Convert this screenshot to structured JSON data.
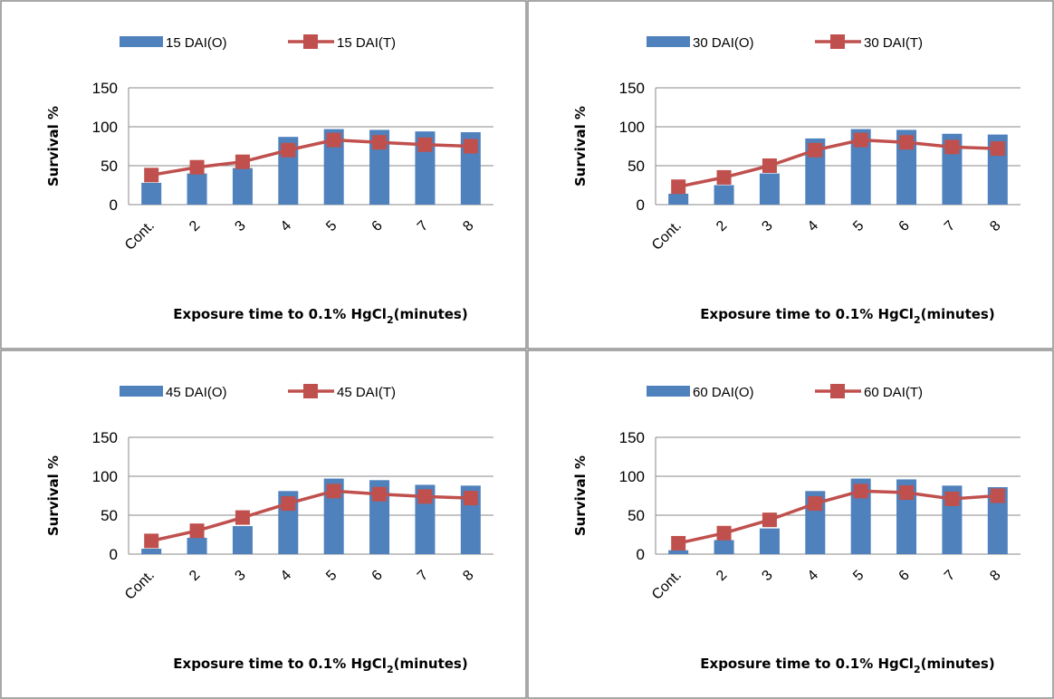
{
  "chart_data": [
    {
      "type": "bar",
      "categories": [
        "Cont.",
        "2",
        "3",
        "4",
        "5",
        "6",
        "7",
        "8"
      ],
      "series": [
        {
          "name": "15 DAI(O)",
          "kind": "bar",
          "values": [
            28,
            40,
            47,
            87,
            97,
            96,
            94,
            93
          ]
        },
        {
          "name": "15 DAI(T)",
          "kind": "line",
          "values": [
            38,
            48,
            55,
            70,
            83,
            80,
            77,
            75
          ]
        }
      ],
      "ylabel": "Survival %",
      "xlabel_pre": "Exposure time to 0.1% HgCl",
      "xlabel_sub": "2",
      "xlabel_post": "(minutes)",
      "ylim": [
        0,
        150
      ],
      "yticks": [
        "0",
        "50",
        "100",
        "150"
      ],
      "grid": true,
      "legend": "top"
    },
    {
      "type": "bar",
      "categories": [
        "Cont.",
        "2",
        "3",
        "4",
        "5",
        "6",
        "7",
        "8"
      ],
      "series": [
        {
          "name": "30 DAI(O)",
          "kind": "bar",
          "values": [
            14,
            25,
            40,
            85,
            97,
            96,
            91,
            90
          ]
        },
        {
          "name": "30 DAI(T)",
          "kind": "line",
          "values": [
            23,
            35,
            50,
            70,
            83,
            80,
            74,
            72
          ]
        }
      ],
      "ylabel": "Survival %",
      "xlabel_pre": "Exposure time to 0.1% HgCl",
      "xlabel_sub": "2",
      "xlabel_post": "(minutes)",
      "ylim": [
        0,
        150
      ],
      "yticks": [
        "0",
        "50",
        "100",
        "150"
      ],
      "grid": true,
      "legend": "top"
    },
    {
      "type": "bar",
      "categories": [
        "Cont.",
        "2",
        "3",
        "4",
        "5",
        "6",
        "7",
        "8"
      ],
      "series": [
        {
          "name": "45 DAI(O)",
          "kind": "bar",
          "values": [
            7,
            21,
            36,
            81,
            97,
            95,
            89,
            88
          ]
        },
        {
          "name": "45 DAI(T)",
          "kind": "line",
          "values": [
            17,
            30,
            47,
            65,
            81,
            77,
            74,
            72
          ]
        }
      ],
      "ylabel": "Survival %",
      "xlabel_pre": "Exposure time to 0.1% HgCl",
      "xlabel_sub": "2",
      "xlabel_post": "(minutes)",
      "ylim": [
        0,
        150
      ],
      "yticks": [
        "0",
        "50",
        "100",
        "150"
      ],
      "grid": true,
      "legend": "top"
    },
    {
      "type": "bar",
      "categories": [
        "Cont.",
        "2",
        "3",
        "4",
        "5",
        "6",
        "7",
        "8"
      ],
      "series": [
        {
          "name": "60 DAI(O)",
          "kind": "bar",
          "values": [
            5,
            18,
            33,
            81,
            97,
            96,
            88,
            86
          ]
        },
        {
          "name": "60 DAI(T)",
          "kind": "line",
          "values": [
            14,
            27,
            44,
            65,
            81,
            79,
            71,
            75
          ]
        }
      ],
      "ylabel": "Survival %",
      "xlabel_pre": "Exposure time to 0.1% HgCl",
      "xlabel_sub": "2",
      "xlabel_post": "(minutes)",
      "ylim": [
        0,
        150
      ],
      "yticks": [
        "0",
        "50",
        "100",
        "150"
      ],
      "grid": true,
      "legend": "top"
    }
  ],
  "colors": {
    "bar": "#4f81bd",
    "line": "#c0504d",
    "gridline": "#8a8a8a",
    "border": "#8c8c8c"
  }
}
